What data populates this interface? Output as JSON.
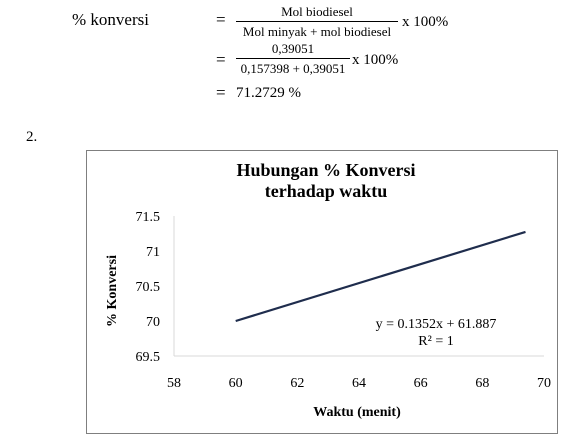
{
  "equation": {
    "lhs": "% konversi",
    "eq1": "=",
    "frac1_num": "Mol biodiesel",
    "frac1_den": "Mol minyak + mol biodiesel",
    "times1": "x 100%",
    "eq2": "=",
    "frac2_num": "0,39051",
    "frac2_den": "0,157398 + 0,39051",
    "times2": "x 100%",
    "eq3": "=",
    "result": "71.2729 %"
  },
  "section_number": "2.",
  "chart_data": {
    "type": "line",
    "title_line1": "Hubungan % Konversi",
    "title_line2": "terhadap waktu",
    "xlabel": "Waktu (menit)",
    "ylabel": "% Konversi",
    "xlim": [
      58,
      70
    ],
    "ylim": [
      69.5,
      71.5
    ],
    "xticks": [
      "58",
      "60",
      "62",
      "64",
      "66",
      "68",
      "70"
    ],
    "yticks": [
      "71.5",
      "71",
      "70.5",
      "70",
      "69.5"
    ],
    "series": [
      {
        "x": [
          60,
          69.4
        ],
        "y": [
          70.0,
          71.2729
        ],
        "color": "#1f2d4d"
      }
    ],
    "trendline_eq": "y = 0.1352x + 61.887",
    "trendline_r2": "R² = 1",
    "grid": false
  }
}
